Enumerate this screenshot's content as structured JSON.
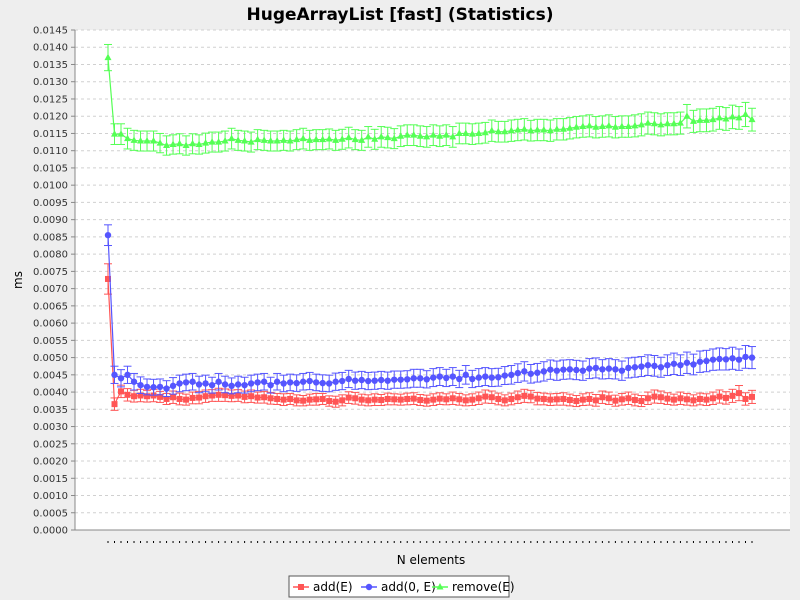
{
  "chart_data": {
    "type": "line",
    "title": "HugeArrayList [fast] (Statistics)",
    "xlabel": "N elements",
    "ylabel": "ms",
    "ylim": [
      0,
      0.0145
    ],
    "ytick_step": 0.0005,
    "ytick_decimals": 4,
    "grid": true,
    "legend_position": "bottom",
    "x_count": 100,
    "series": [
      {
        "name": "add(E)",
        "color": "#ff5555",
        "marker": "square",
        "values": [
          0.00728,
          0.00365,
          0.00402,
          0.00392,
          0.00388,
          0.0039,
          0.00388,
          0.0039,
          0.00386,
          0.0038,
          0.00385,
          0.0038,
          0.00378,
          0.00383,
          0.00384,
          0.00388,
          0.0039,
          0.00392,
          0.00391,
          0.00389,
          0.0039,
          0.00386,
          0.00388,
          0.00384,
          0.00385,
          0.00382,
          0.0038,
          0.00378,
          0.0038,
          0.00376,
          0.00375,
          0.00378,
          0.00379,
          0.0038,
          0.00374,
          0.00372,
          0.00376,
          0.00384,
          0.00382,
          0.00378,
          0.00376,
          0.00378,
          0.00377,
          0.0038,
          0.00379,
          0.00378,
          0.0038,
          0.00381,
          0.00377,
          0.00375,
          0.00378,
          0.00381,
          0.00379,
          0.00382,
          0.00379,
          0.00376,
          0.00378,
          0.00382,
          0.00387,
          0.00385,
          0.0038,
          0.00376,
          0.0038,
          0.00385,
          0.00389,
          0.00387,
          0.00381,
          0.0038,
          0.00378,
          0.00379,
          0.0038,
          0.00377,
          0.00374,
          0.00378,
          0.0038,
          0.00376,
          0.00385,
          0.00382,
          0.00375,
          0.00379,
          0.00382,
          0.00377,
          0.00374,
          0.00382,
          0.00387,
          0.00385,
          0.00381,
          0.00378,
          0.00382,
          0.00379,
          0.00376,
          0.0038,
          0.00378,
          0.00382,
          0.00387,
          0.00383,
          0.00389,
          0.00397,
          0.0038,
          0.00386
        ],
        "errors": [
          0.00044,
          0.00018,
          0.00018,
          0.00018,
          0.00017,
          0.00018,
          0.00017,
          0.00018,
          0.00016,
          0.00016,
          0.00018,
          0.00017,
          0.00016,
          0.00017,
          0.00018,
          0.00018,
          0.00017,
          0.00019,
          0.00018,
          0.00017,
          0.00017,
          0.00017,
          0.00018,
          0.00016,
          0.00017,
          0.00017,
          0.00016,
          0.00017,
          0.00016,
          0.00016,
          0.00015,
          0.00016,
          0.00017,
          0.00016,
          0.00015,
          0.00016,
          0.00016,
          0.00017,
          0.00017,
          0.00016,
          0.00016,
          0.00017,
          0.00016,
          0.00017,
          0.00016,
          0.00016,
          0.00017,
          0.00017,
          0.00016,
          0.00016,
          0.00017,
          0.00017,
          0.00016,
          0.00018,
          0.00017,
          0.00016,
          0.00017,
          0.00018,
          0.00019,
          0.00018,
          0.00017,
          0.00016,
          0.00017,
          0.00018,
          0.00019,
          0.00018,
          0.00018,
          0.00017,
          0.00017,
          0.00017,
          0.00018,
          0.00017,
          0.00016,
          0.00017,
          0.00018,
          0.00017,
          0.00018,
          0.00018,
          0.00016,
          0.00017,
          0.00018,
          0.00017,
          0.00016,
          0.00018,
          0.00019,
          0.00018,
          0.00017,
          0.00016,
          0.00018,
          0.00017,
          0.00016,
          0.00017,
          0.00017,
          0.00018,
          0.00019,
          0.00018,
          0.00019,
          0.00022,
          0.00018,
          0.00019
        ]
      },
      {
        "name": "add(0, E)",
        "color": "#5555ff",
        "marker": "circle",
        "values": [
          0.00855,
          0.0045,
          0.0044,
          0.0045,
          0.0043,
          0.0042,
          0.00415,
          0.00414,
          0.00415,
          0.0041,
          0.00418,
          0.00425,
          0.00428,
          0.0043,
          0.00422,
          0.00425,
          0.0042,
          0.0043,
          0.00422,
          0.00418,
          0.00422,
          0.0042,
          0.00425,
          0.00428,
          0.0043,
          0.0042,
          0.0043,
          0.00425,
          0.00428,
          0.00426,
          0.0043,
          0.00432,
          0.00428,
          0.00426,
          0.00425,
          0.0043,
          0.00432,
          0.00438,
          0.00433,
          0.00435,
          0.00432,
          0.00433,
          0.00435,
          0.00433,
          0.00436,
          0.00436,
          0.00437,
          0.0044,
          0.0044,
          0.00437,
          0.00442,
          0.00445,
          0.00441,
          0.00445,
          0.00438,
          0.0045,
          0.00438,
          0.00442,
          0.00445,
          0.00442,
          0.00443,
          0.00448,
          0.0045,
          0.00455,
          0.0046,
          0.00453,
          0.00456,
          0.0046,
          0.00465,
          0.00462,
          0.00465,
          0.00466,
          0.00464,
          0.00462,
          0.00468,
          0.0047,
          0.00466,
          0.00468,
          0.00466,
          0.00462,
          0.0047,
          0.00472,
          0.00474,
          0.00478,
          0.00476,
          0.00472,
          0.00478,
          0.00482,
          0.00478,
          0.00485,
          0.0048,
          0.00488,
          0.0049,
          0.00494,
          0.00496,
          0.00495,
          0.00498,
          0.00494,
          0.00502,
          0.005
        ],
        "errors": [
          0.0003,
          0.00025,
          0.00025,
          0.00025,
          0.00024,
          0.00024,
          0.00023,
          0.00023,
          0.00023,
          0.00023,
          0.00024,
          0.00024,
          0.00024,
          0.00024,
          0.00024,
          0.00024,
          0.00023,
          0.00024,
          0.00024,
          0.00023,
          0.00024,
          0.00023,
          0.00024,
          0.00024,
          0.00024,
          0.00023,
          0.00024,
          0.00024,
          0.00024,
          0.00024,
          0.00024,
          0.00025,
          0.00024,
          0.00024,
          0.00024,
          0.00025,
          0.00025,
          0.00025,
          0.00025,
          0.00025,
          0.00025,
          0.00025,
          0.00025,
          0.00025,
          0.00025,
          0.00025,
          0.00025,
          0.00026,
          0.00026,
          0.00025,
          0.00026,
          0.00026,
          0.00025,
          0.00026,
          0.00025,
          0.00027,
          0.00025,
          0.00026,
          0.00026,
          0.00026,
          0.00026,
          0.00026,
          0.00027,
          0.00027,
          0.00028,
          0.00027,
          0.00027,
          0.00028,
          0.00028,
          0.00028,
          0.00028,
          0.00028,
          0.00028,
          0.00028,
          0.00029,
          0.00029,
          0.00028,
          0.00029,
          0.00028,
          0.00028,
          0.00029,
          0.00029,
          0.00029,
          0.0003,
          0.0003,
          0.00029,
          0.0003,
          0.00031,
          0.0003,
          0.00031,
          0.0003,
          0.00031,
          0.00031,
          0.00031,
          0.00032,
          0.00031,
          0.00032,
          0.00031,
          0.00033,
          0.00032
        ]
      },
      {
        "name": "remove(E)",
        "color": "#55ff55",
        "marker": "triangle",
        "values": [
          0.0137,
          0.01148,
          0.01148,
          0.01135,
          0.0113,
          0.01128,
          0.01128,
          0.01128,
          0.01122,
          0.01115,
          0.01118,
          0.0112,
          0.01115,
          0.0112,
          0.01118,
          0.01122,
          0.01125,
          0.01125,
          0.01128,
          0.01135,
          0.0113,
          0.01128,
          0.01125,
          0.01132,
          0.0113,
          0.01128,
          0.01128,
          0.0113,
          0.01128,
          0.01132,
          0.01135,
          0.0113,
          0.01132,
          0.01132,
          0.01134,
          0.0113,
          0.01133,
          0.01138,
          0.01132,
          0.0113,
          0.0114,
          0.01133,
          0.0114,
          0.01138,
          0.01135,
          0.01142,
          0.01145,
          0.01145,
          0.01142,
          0.0114,
          0.01145,
          0.01142,
          0.01145,
          0.0114,
          0.0115,
          0.0115,
          0.01148,
          0.0115,
          0.01152,
          0.01158,
          0.01155,
          0.01155,
          0.01158,
          0.0116,
          0.01162,
          0.01158,
          0.0116,
          0.0116,
          0.01158,
          0.01162,
          0.01162,
          0.01165,
          0.01168,
          0.0117,
          0.01172,
          0.01168,
          0.0117,
          0.01172,
          0.01168,
          0.0117,
          0.0117,
          0.01172,
          0.01175,
          0.0118,
          0.01178,
          0.01175,
          0.01178,
          0.01178,
          0.0118,
          0.012,
          0.01185,
          0.01188,
          0.01188,
          0.0119,
          0.01195,
          0.01192,
          0.01198,
          0.01195,
          0.01205,
          0.0119
        ],
        "errors": [
          0.00038,
          0.0003,
          0.0003,
          0.0003,
          0.00029,
          0.00029,
          0.00029,
          0.00029,
          0.00028,
          0.00028,
          0.00028,
          0.00029,
          0.00028,
          0.00029,
          0.00028,
          0.00029,
          0.00029,
          0.00029,
          0.00029,
          0.0003,
          0.00029,
          0.00029,
          0.00029,
          0.00029,
          0.00029,
          0.00029,
          0.00029,
          0.00029,
          0.00029,
          0.00029,
          0.0003,
          0.00029,
          0.00029,
          0.00029,
          0.00029,
          0.00029,
          0.00029,
          0.0003,
          0.00029,
          0.00029,
          0.0003,
          0.00029,
          0.0003,
          0.0003,
          0.00029,
          0.0003,
          0.0003,
          0.0003,
          0.0003,
          0.0003,
          0.0003,
          0.0003,
          0.0003,
          0.0003,
          0.0003,
          0.0003,
          0.0003,
          0.0003,
          0.0003,
          0.00031,
          0.0003,
          0.0003,
          0.00031,
          0.00031,
          0.00031,
          0.0003,
          0.00031,
          0.00031,
          0.00031,
          0.00031,
          0.00031,
          0.00031,
          0.00031,
          0.00031,
          0.00032,
          0.00031,
          0.00031,
          0.00032,
          0.00031,
          0.00031,
          0.00031,
          0.00032,
          0.00032,
          0.00032,
          0.00032,
          0.00032,
          0.00032,
          0.00032,
          0.00032,
          0.00034,
          0.00032,
          0.00033,
          0.00033,
          0.00033,
          0.00033,
          0.00033,
          0.00034,
          0.00033,
          0.00035,
          0.00033
        ]
      }
    ]
  }
}
